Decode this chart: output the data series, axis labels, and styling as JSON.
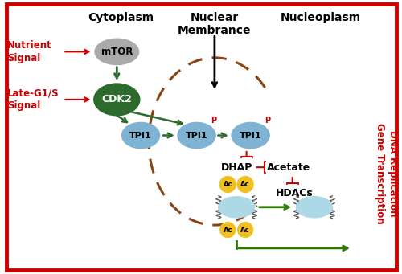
{
  "fig_width": 5.0,
  "fig_height": 3.41,
  "dpi": 100,
  "bg_color": "#ffffff",
  "border_color": "#cc0000",
  "title_cytoplasm": "Cytoplasm",
  "title_nuclear": "Nuclear\nMembrance",
  "title_nucleoplasm": "Nucleoplasm",
  "label_nutrient": "Nutrient\nSignal",
  "label_late": "Late-G1/S\nSignal",
  "label_mTOR": "mTOR",
  "label_CDK2": "CDK2",
  "label_TPI1": "TPI1",
  "label_DHAP": "DHAP",
  "label_Acetate": "Acetate",
  "label_HDACs": "HDACs",
  "label_Ac": "Ac",
  "label_P": "P",
  "label_dna": "DNA Replication\nGene Transcription",
  "red": "#cc0000",
  "dark_green": "#2d6a2d",
  "green_arrow": "#2d7a00",
  "mtor_color": "#aaaaaa",
  "cdk2_color": "#2d6a2d",
  "tpi1_color": "#7fb3d3",
  "ac_color": "#f0c020",
  "dashed_brown": "#8B4513",
  "nuc_body_color": "#add8e6",
  "nuc_edge_color": "#4488aa"
}
